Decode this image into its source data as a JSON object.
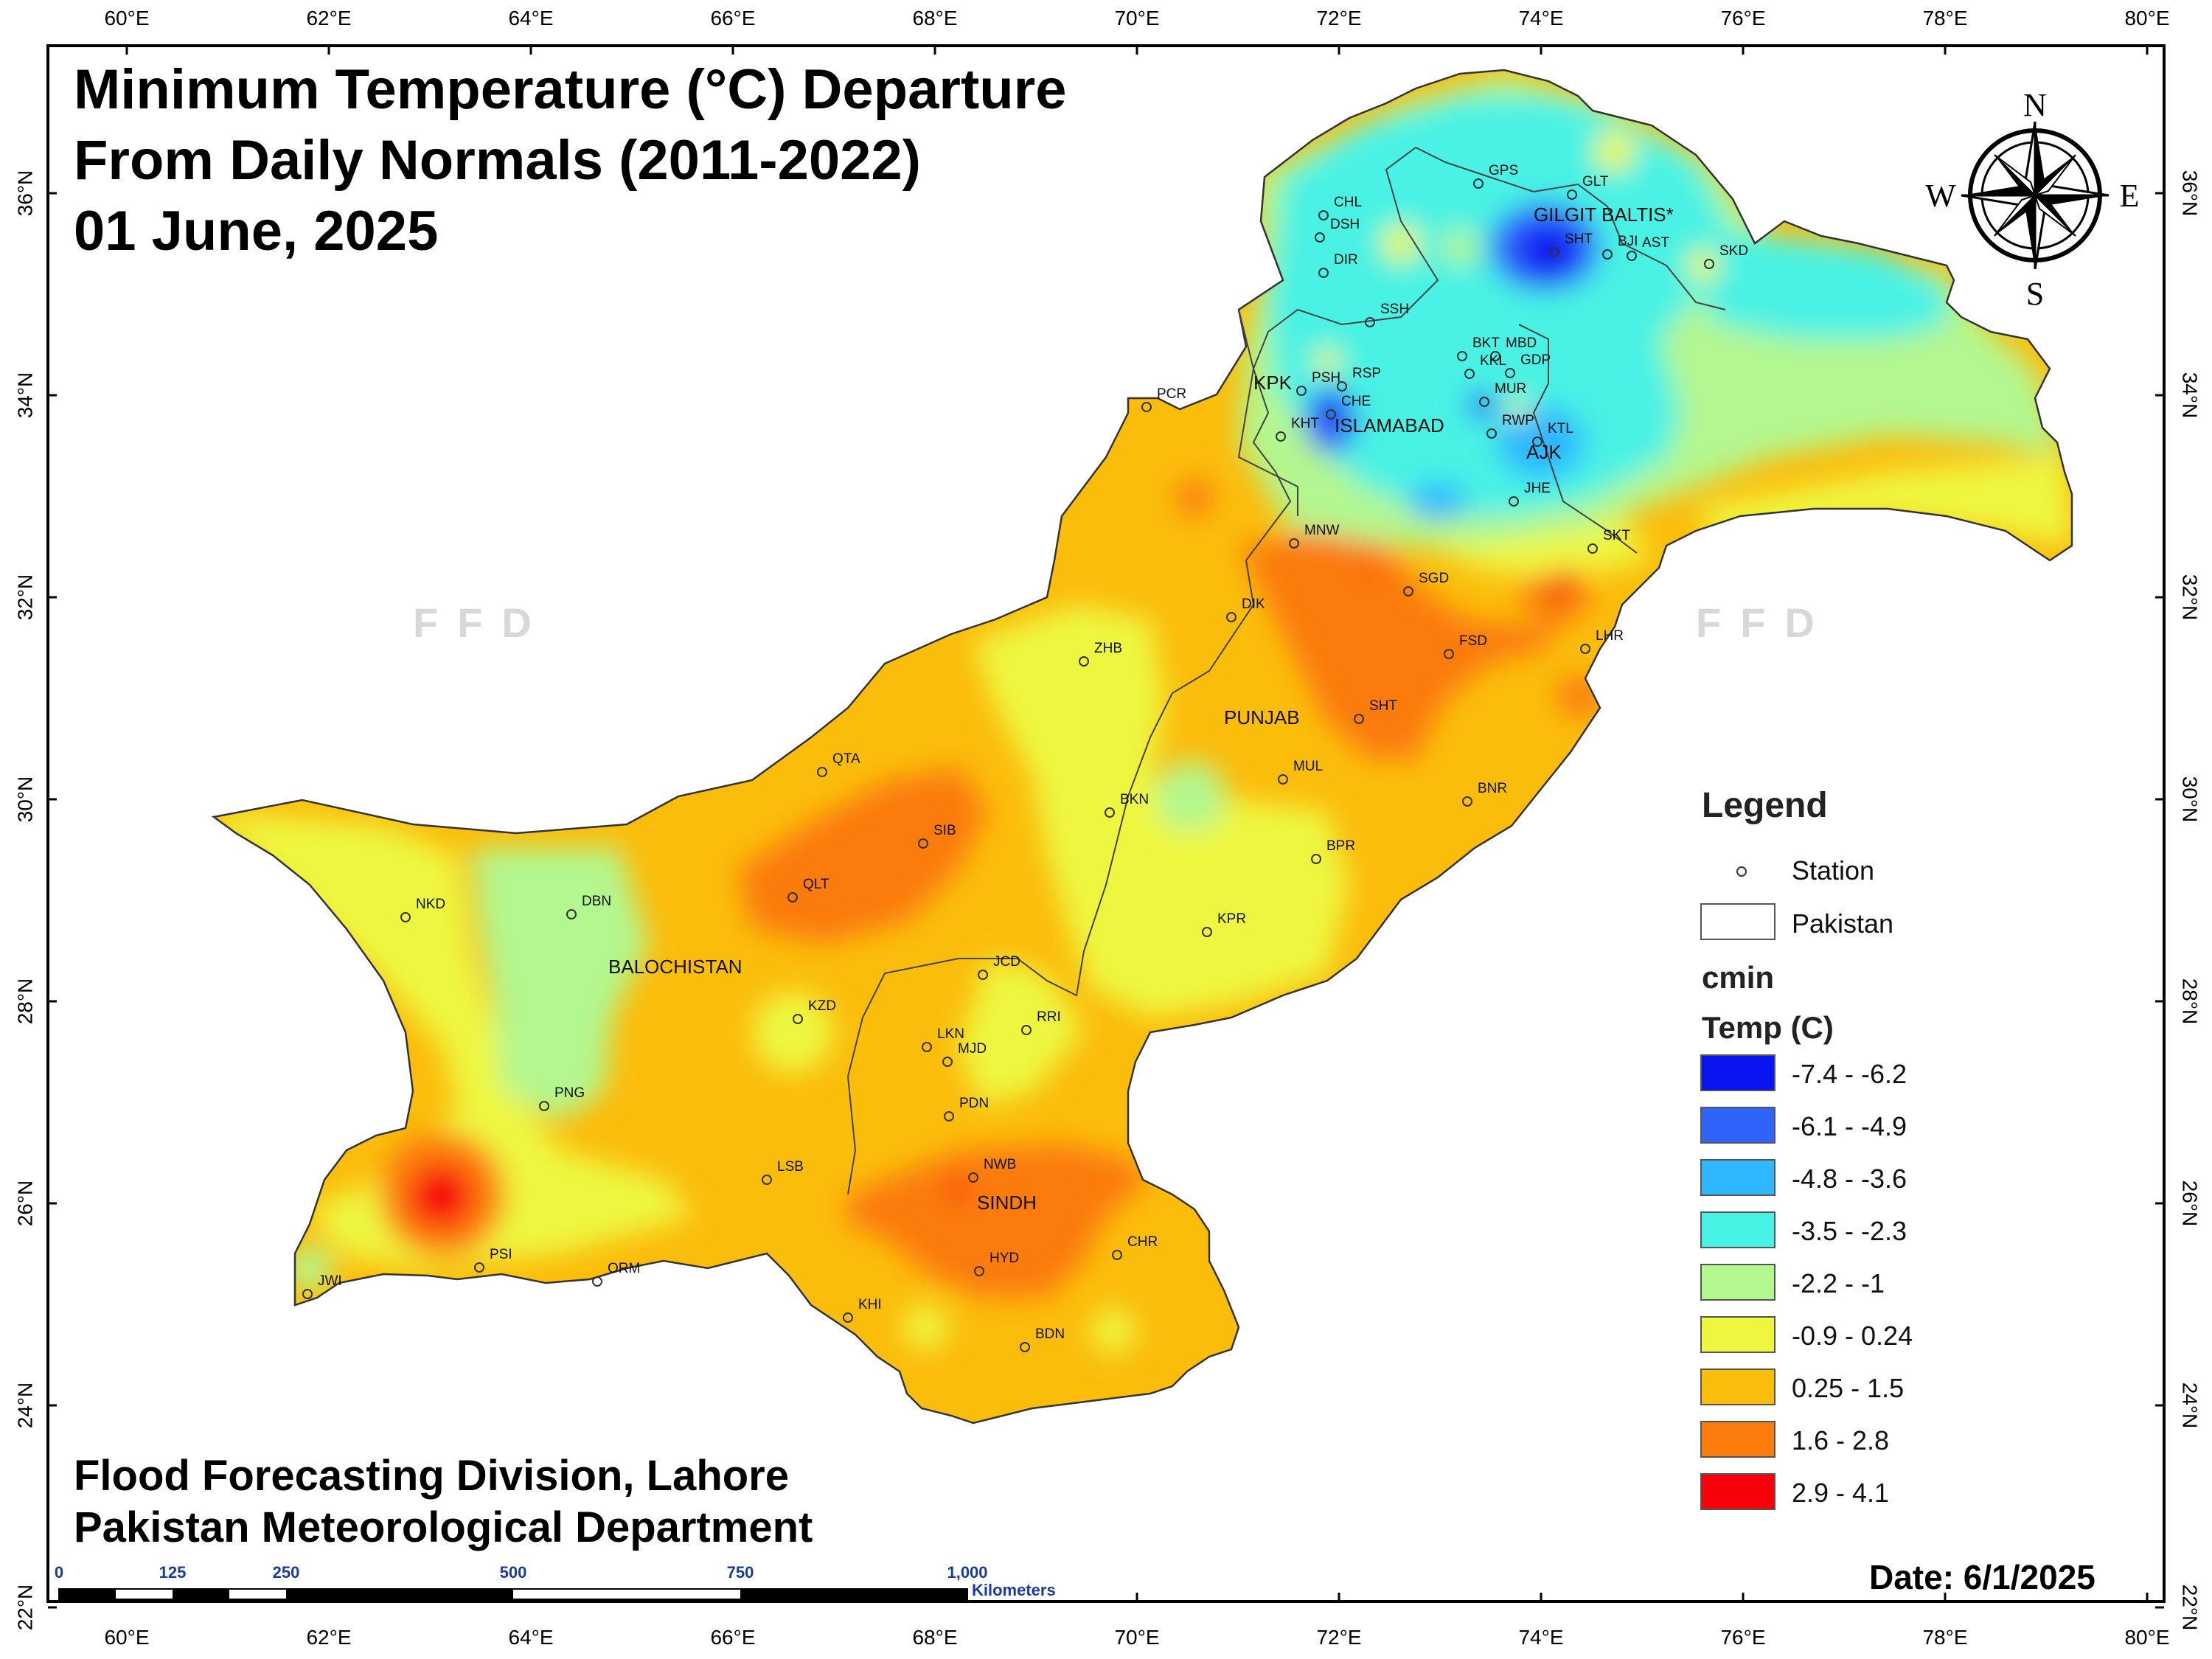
{
  "title": {
    "line1": "Minimum Temperature (°C) Departure",
    "line2": "From Daily Normals (2011-2022)",
    "line3": "01 June, 2025"
  },
  "footer": {
    "line1": "Flood Forecasting Division, Lahore",
    "line2": "Pakistan Meteorological Department",
    "date": "Date: 6/1/2025"
  },
  "watermark": "FFD",
  "axes": {
    "lon_labels": [
      "60°E",
      "62°E",
      "64°E",
      "66°E",
      "68°E",
      "70°E",
      "72°E",
      "74°E",
      "76°E",
      "78°E",
      "80°E"
    ],
    "lat_labels": [
      "36°N",
      "34°N",
      "32°N",
      "30°N",
      "28°N",
      "26°N",
      "24°N",
      "22°N"
    ]
  },
  "compass": {
    "n": "N",
    "s": "S",
    "e": "E",
    "w": "W"
  },
  "scale_bar": {
    "ticks": [
      "0",
      "125",
      "250",
      "500",
      "750",
      "1,000"
    ],
    "unit": "Kilometers"
  },
  "legend": {
    "title": "Legend",
    "station_label": "Station",
    "pakistan_label": "Pakistan",
    "layer_name": "cmin",
    "field_name": "Temp (C)",
    "classes": [
      {
        "label": "-7.4 - -6.2",
        "color": "#0a14f0"
      },
      {
        "label": "-6.1 - -4.9",
        "color": "#2e64fa"
      },
      {
        "label": "-4.8 - -3.6",
        "color": "#2fb8ff"
      },
      {
        "label": "-3.5 - -2.3",
        "color": "#48f2e4"
      },
      {
        "label": "-2.2 - -1",
        "color": "#b3f78f"
      },
      {
        "label": "-0.9 - 0.24",
        "color": "#eef740"
      },
      {
        "label": "0.25 - 1.5",
        "color": "#fbbd0c"
      },
      {
        "label": "1.6 - 2.8",
        "color": "#fb7b0d"
      },
      {
        "label": "2.9 - 4.1",
        "color": "#f8000a"
      }
    ]
  },
  "regions": [
    "GILGIT BALTIS*",
    "KPK",
    "ISLAMABAD",
    "AJK",
    "PUNJAB",
    "BALOCHISTAN",
    "SINDH"
  ],
  "stations": [
    "CHL",
    "DSH",
    "DIR",
    "GPS",
    "GLT",
    "SHT",
    "BJI",
    "AST",
    "SKD",
    "SSH",
    "BKT",
    "MBD",
    "KKL",
    "GDP",
    "MUR",
    "PSH",
    "RSP",
    "CHE",
    "KHT",
    "RWP",
    "KTL",
    "JHE",
    "SKT",
    "PCR",
    "MNW",
    "SGD",
    "DIK",
    "FSD",
    "LHR",
    "ZHB",
    "SHT",
    "QTA",
    "SIB",
    "MUL",
    "BKN",
    "BNR",
    "BPR",
    "NKD",
    "DBN",
    "QLT",
    "KPR",
    "JCD",
    "KZD",
    "RRI",
    "LKN",
    "MJD",
    "PNG",
    "PDN",
    "LSB",
    "NWB",
    "SINDH",
    "HYD",
    "CHR",
    "PSI",
    "ORM",
    "JWI",
    "KHI",
    "BDN"
  ]
}
